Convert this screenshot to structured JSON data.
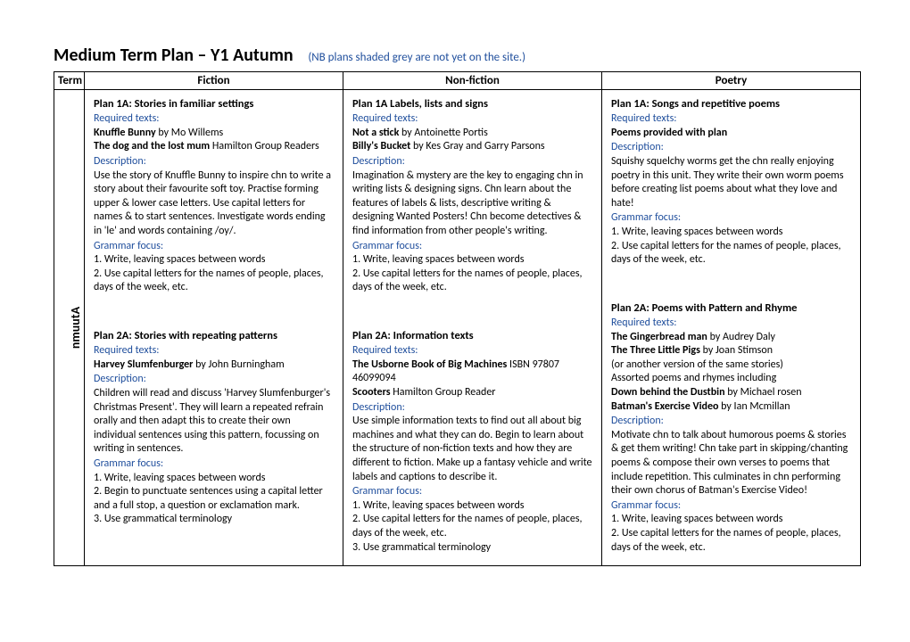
{
  "header": {
    "title": "Medium Term Plan – Y1 Autumn",
    "subtitle": "(NB plans shaded grey are not yet on the site.)"
  },
  "columns": {
    "term": "Term",
    "fiction": "Fiction",
    "nonfiction": "Non-fiction",
    "poetry": "Poetry"
  },
  "termLabel": "nmuutA",
  "fiction": {
    "p1": {
      "title": "Plan 1A:  Stories in familiar settings",
      "reqLabel": "Required texts:",
      "text1a": "Knuffle Bunny",
      "text1b": " by Mo Willems",
      "text2a": "The dog and the lost mum",
      "text2b": " Hamilton Group Readers",
      "descLabel": "Description:",
      "desc": "Use the story of Knuffle Bunny to inspire chn to write a story about their favourite soft toy. Practise forming upper & lower case letters. Use capital letters for names & to start sentences. Investigate words ending in 'le' and words containing /oy/.",
      "gramLabel": "Grammar focus:",
      "g1": "1. Write, leaving spaces between words",
      "g2": "2.  Use capital letters for the names of people, places, days of the week, etc."
    },
    "p2": {
      "title": "Plan 2A: Stories with repeating patterns",
      "reqLabel": "Required texts:",
      "text1a": "Harvey Slumfenburger",
      "text1b": " by John Burningham",
      "descLabel": "Description:",
      "desc": "Children will read and discuss 'Harvey Slumfenburger's Christmas Present'. They will learn a repeated refrain orally and then adapt this to create their own individual sentences using this pattern, focussing on writing in sentences.",
      "gramLabel": "Grammar focus:",
      "g1": "1. Write, leaving spaces between words",
      "g2": "2.  Begin to punctuate sentences using a capital letter and a full stop, a question or exclamation mark.",
      "g3": "3. Use grammatical terminology"
    }
  },
  "nonfiction": {
    "p1": {
      "title": "Plan 1A  Labels, lists and signs",
      "reqLabel": "Required texts:",
      "text1a": "Not a stick",
      "text1b": " by Antoinette Portis",
      "text2a": "Billy's Bucket",
      "text2b": "  by Kes Gray and Garry Parsons",
      "descLabel": "Description:",
      "desc": "Imagination & mystery are the key to engaging chn in writing lists & designing signs. Chn learn about the features of labels & lists, descriptive writing & designing Wanted Posters! Chn become detectives & find information from other people's writing.",
      "gramLabel": "Grammar focus:",
      "g1": "1. Write, leaving spaces between words",
      "g2": "2.  Use capital letters for the names of people, places, days of the week, etc."
    },
    "p2": {
      "title": "Plan 2A: Information texts",
      "reqLabel": "Required texts:",
      "text1a": "The Usborne Book of Big Machines",
      "text1b": "  ISBN 97807 46099094",
      "text2a": "Scooters",
      "text2b": " Hamilton Group Reader",
      "descLabel": "Description:",
      "desc": "Use simple information texts to find out all about big machines and what they can do. Begin to learn about the structure of non-fiction texts and how they are different to fiction. Make up a fantasy vehicle and write labels and captions to describe it.",
      "gramLabel": "Grammar focus:",
      "g1": "1. Write, leaving spaces between words",
      "g2": "2.  Use capital letters for the names of people, places, days of the week, etc.",
      "g3": "3. Use grammatical terminology"
    }
  },
  "poetry": {
    "p1": {
      "title": "Plan 1A: Songs and repetitive poems",
      "reqLabel": "Required texts:",
      "text1": " Poems provided with plan",
      "descLabel": "Description:",
      "desc": "Squishy squelchy worms get the chn really enjoying poetry in this unit. They write their own worm poems before creating list poems about what they love and hate!",
      "gramLabel": "Grammar focus:",
      "g1": "1. Write, leaving spaces between words",
      "g2": "2.  Use capital letters for the names of people, places, days of the week, etc."
    },
    "p2": {
      "title": "Plan 2A: Poems with Pattern and Rhyme",
      "reqLabel": "Required texts:",
      "text1a": "The Gingerbread man",
      "text1b": " by Audrey Daly",
      "text2a": "The Three Little Pigs",
      "text2b": " by Joan Stimson",
      "text3": " (or another version of the same stories)",
      "text4": "Assorted poems and rhymes including",
      "text5a": "Down behind the Dustbin",
      "text5b": " by Michael rosen",
      "text6a": "Batman's Exercise Video",
      "text6b": " by Ian Mcmillan",
      "descLabel": "Description:",
      "desc": "Motivate chn to talk about humorous poems & stories & get them writing! Chn take part in skipping/chanting poems & compose their own verses to poems that include repetition. This culminates in chn performing their own chorus of Batman's Exercise Video!",
      "gramLabel": "Grammar focus:",
      "g1": "1. Write, leaving spaces between words",
      "g2": "2.  Use capital letters for the names of people, places, days of the week, etc."
    }
  }
}
